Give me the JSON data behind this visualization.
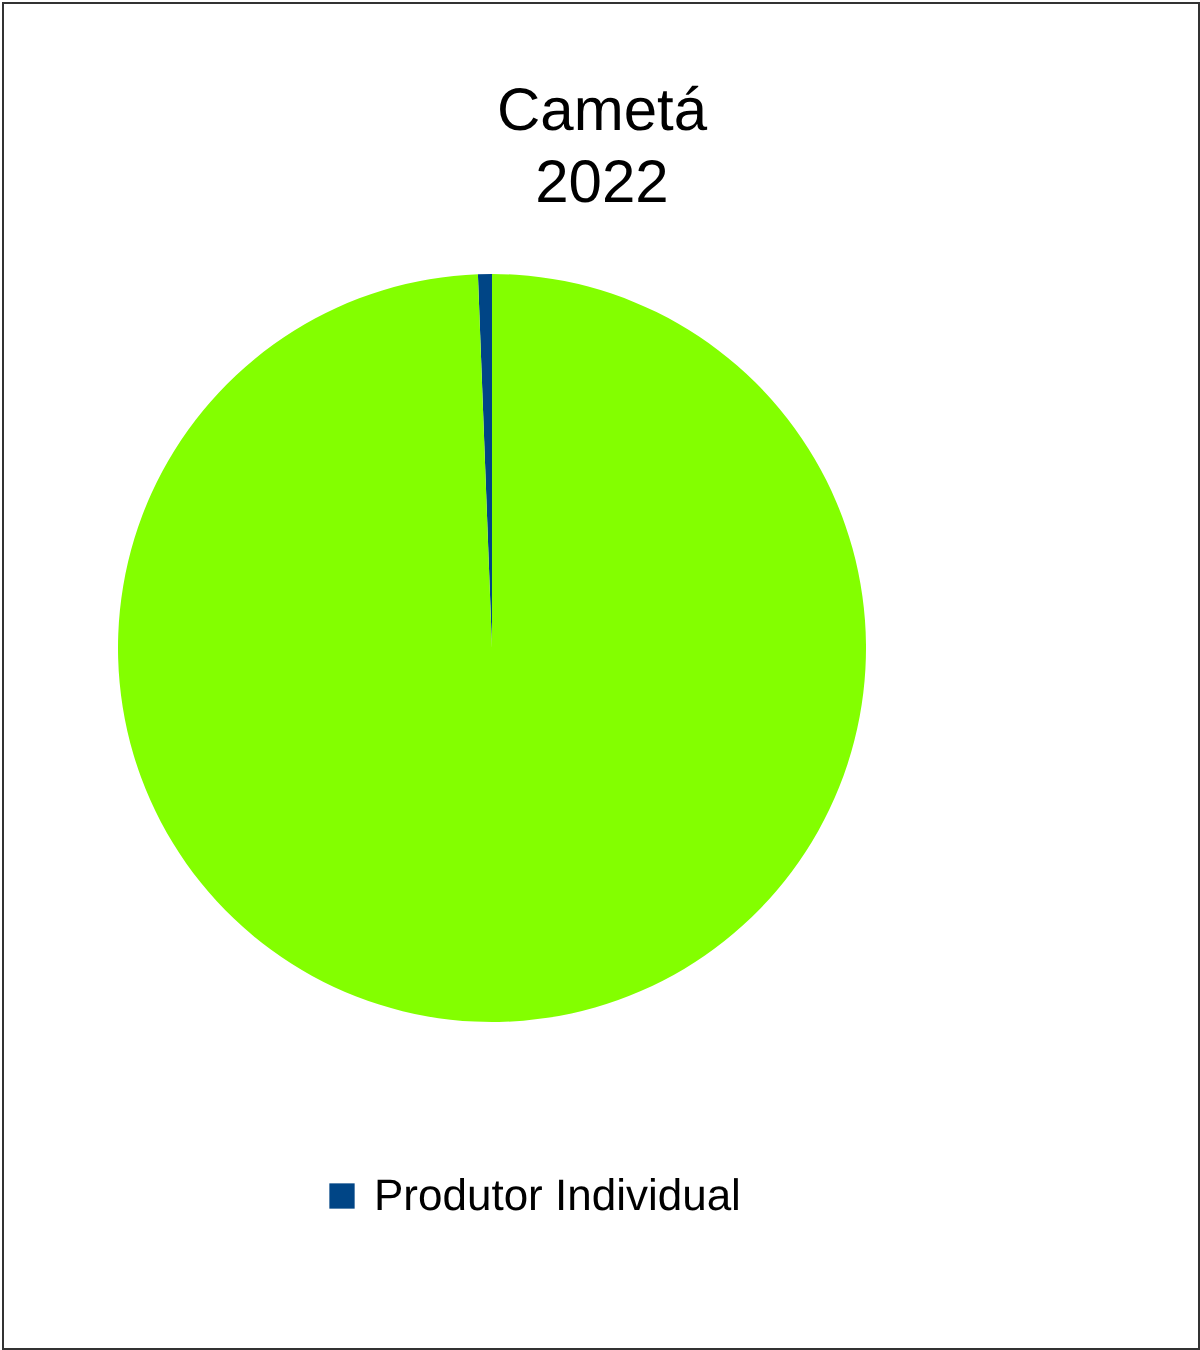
{
  "chart_data": {
    "type": "pie",
    "title": "Cametá\n2022",
    "categories": [
      "Produtor Individual",
      null
    ],
    "values": [
      0.6,
      99.4
    ],
    "colors": [
      "#004586",
      "#83ff00"
    ],
    "legend": "bottom"
  }
}
